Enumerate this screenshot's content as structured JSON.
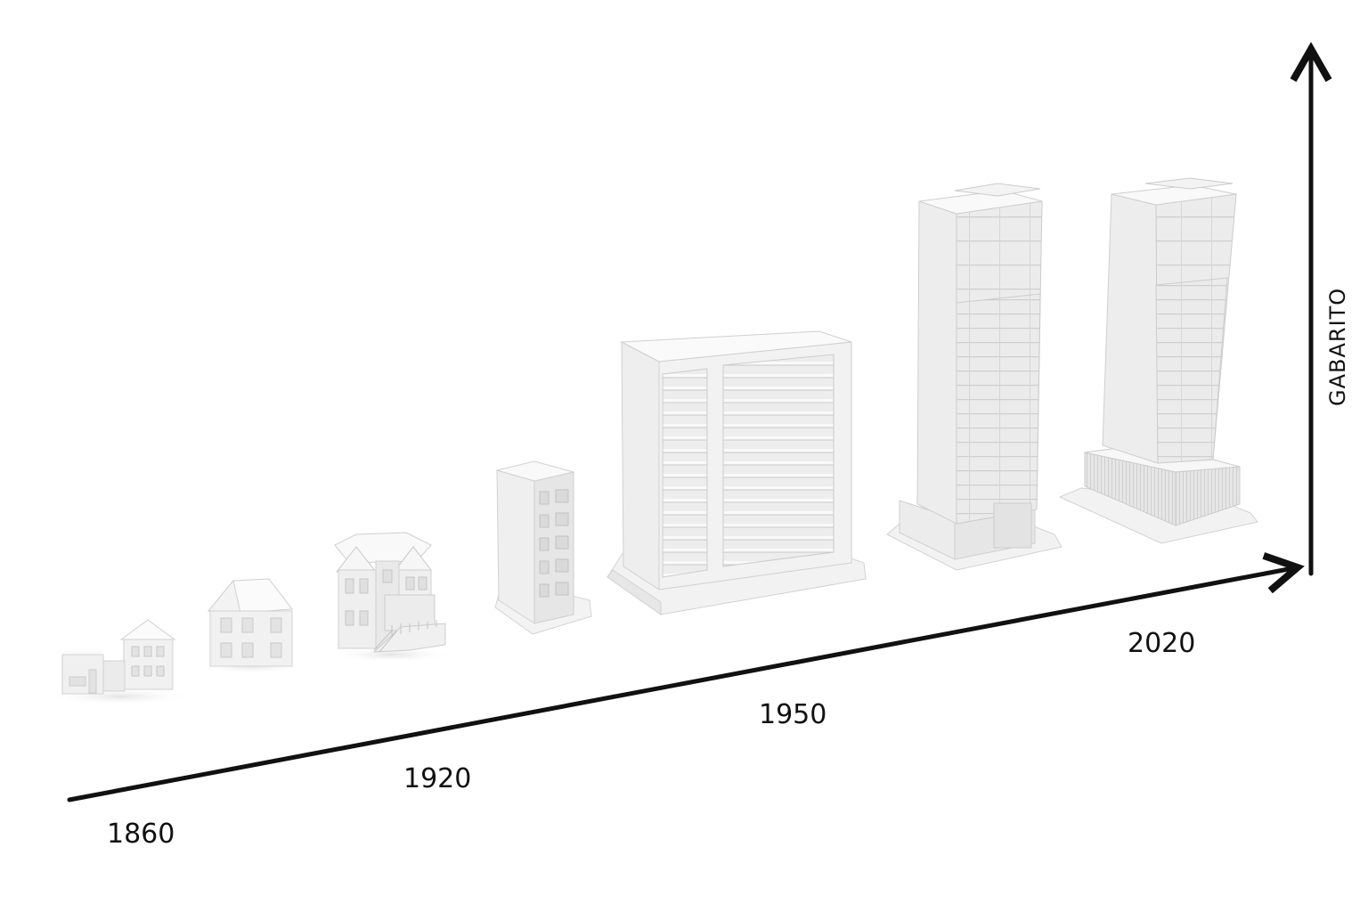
{
  "timeline": {
    "years": [
      {
        "label": "1860"
      },
      {
        "label": "1920"
      },
      {
        "label": "1950"
      },
      {
        "label": "2020"
      }
    ]
  },
  "vertical_axis": {
    "label": "GABARITO"
  },
  "colors": {
    "axis": "#111111",
    "building_front": "#f1f1f1",
    "building_side": "#dcdcdc",
    "building_top": "#fafafa",
    "building_lines": "#bdbdbd"
  }
}
